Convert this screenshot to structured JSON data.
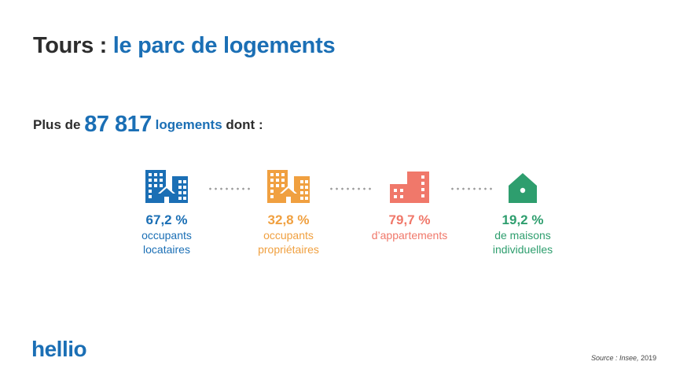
{
  "header": {
    "title_prefix": "Tours :",
    "title_accent": "le parc de logements"
  },
  "summary": {
    "prefix": "Plus de",
    "count": "87 817",
    "unit": "logements",
    "suffix": "dont :"
  },
  "stats": [
    {
      "percent": "67,2 %",
      "line1": "occupants",
      "line2": "locataires",
      "color": "#1b6fb5",
      "icon": "office-buildings-icon"
    },
    {
      "percent": "32,8 %",
      "line1": "occupants",
      "line2": "propriétaires",
      "color": "#f0a040",
      "icon": "office-buildings-icon"
    },
    {
      "percent": "79,7 %",
      "line1": "d’appartements",
      "line2": "",
      "color": "#f0786a",
      "icon": "apartment-building-icon"
    },
    {
      "percent": "19,2 %",
      "line1": "de maisons",
      "line2": "individuelles",
      "color": "#2e9e6e",
      "icon": "house-icon"
    }
  ],
  "footer": {
    "logo": "hellio",
    "source_label": "Source :",
    "source_name": "Insee,",
    "source_year": "2019"
  }
}
